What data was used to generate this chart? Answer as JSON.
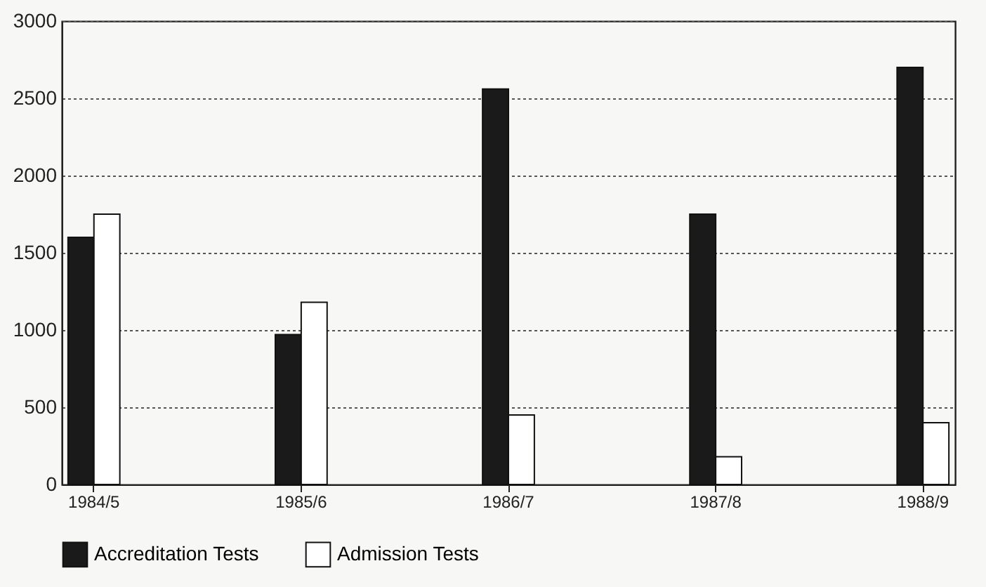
{
  "chart_data": {
    "type": "bar",
    "categories": [
      "1984/5",
      "1985/6",
      "1986/7",
      "1987/8",
      "1988/9"
    ],
    "series": [
      {
        "name": "Accreditation Tests",
        "color": "#1a1a1a",
        "values": [
          1600,
          970,
          2560,
          1750,
          2700
        ]
      },
      {
        "name": "Admission Tests",
        "color": "#ffffff",
        "values": [
          1750,
          1180,
          450,
          180,
          400
        ]
      }
    ],
    "ylim": [
      0,
      3000
    ],
    "yticks": [
      0,
      500,
      1000,
      1500,
      2000,
      2500,
      3000
    ],
    "grid": "y",
    "legend": "bottom"
  }
}
